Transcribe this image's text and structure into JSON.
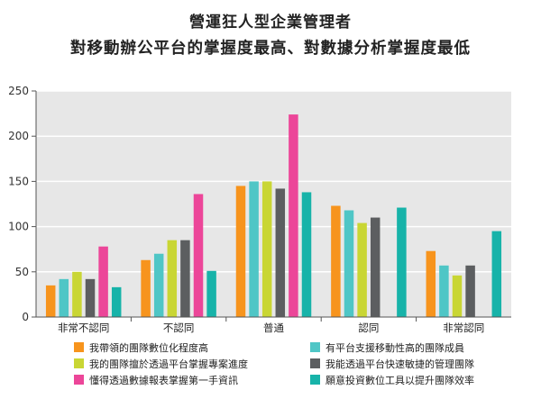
{
  "title_line1": "營運狂人型企業管理者",
  "title_line2": "對移動辦公平台的掌握度最高、對數據分析掌握度最低",
  "chart_data": {
    "type": "bar",
    "categories": [
      "非常不認同",
      "不認同",
      "普通",
      "認同",
      "非常認同"
    ],
    "ylim": [
      0,
      250
    ],
    "yticks": [
      0,
      50,
      100,
      150,
      200,
      250
    ],
    "grid": true,
    "legend_position": "bottom",
    "series": [
      {
        "name": "我帶領的團隊數位化程度高",
        "color": "#F7941D",
        "values": [
          35,
          63,
          145,
          123,
          73
        ]
      },
      {
        "name": "有平台支援移動性高的團隊成員",
        "color": "#4FC6C6",
        "values": [
          42,
          70,
          150,
          118,
          57
        ]
      },
      {
        "name": "我的團隊擅於透過平台掌握專案進度",
        "color": "#C9D634",
        "values": [
          50,
          85,
          150,
          104,
          46
        ]
      },
      {
        "name": "我能透過平台快速敏捷的管理團隊",
        "color": "#5C5E60",
        "values": [
          42,
          85,
          142,
          110,
          57
        ]
      },
      {
        "name": "懂得透過數據報表掌握第一手資訊",
        "color": "#EC4699",
        "values": [
          78,
          136,
          224,
          null,
          null
        ]
      },
      {
        "name": "願意投資數位工具以提升團隊效率",
        "color": "#17B3A9",
        "values": [
          33,
          51,
          138,
          121,
          95
        ]
      }
    ]
  }
}
